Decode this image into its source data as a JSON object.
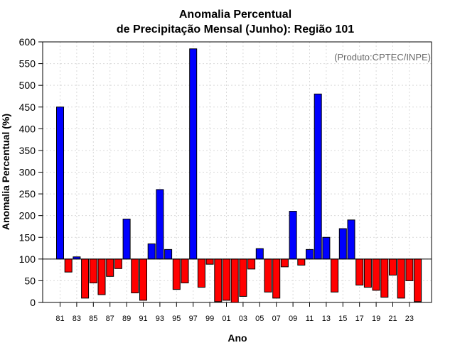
{
  "chart_data": {
    "type": "bar",
    "title_line1": "Anomalia Percentual",
    "title_line2": "de Precipitação Mensal (Junho): Região 101",
    "xlabel": "Ano",
    "ylabel": "Anomalia Percentual (%)",
    "credit": "(Produto:CPTEC/INPE)",
    "ylim": [
      0,
      600
    ],
    "yticks": [
      0,
      50,
      100,
      150,
      200,
      250,
      300,
      350,
      400,
      450,
      500,
      550,
      600
    ],
    "baseline": 100,
    "grid": true,
    "color_above": "#0000ff",
    "color_below": "#ff0000",
    "categories": [
      "81",
      "82",
      "83",
      "84",
      "85",
      "86",
      "87",
      "88",
      "89",
      "90",
      "91",
      "92",
      "93",
      "94",
      "95",
      "96",
      "97",
      "98",
      "99",
      "00",
      "01",
      "02",
      "03",
      "04",
      "05",
      "06",
      "07",
      "08",
      "09",
      "10",
      "11",
      "12",
      "13",
      "14",
      "15",
      "16",
      "17",
      "18",
      "19",
      "20",
      "21",
      "22",
      "23",
      "24"
    ],
    "tick_labels": [
      "81",
      "83",
      "85",
      "87",
      "89",
      "91",
      "93",
      "95",
      "97",
      "99",
      "01",
      "03",
      "05",
      "07",
      "09",
      "11",
      "13",
      "15",
      "17",
      "19",
      "21",
      "23"
    ],
    "values": [
      450,
      70,
      105,
      10,
      45,
      18,
      60,
      78,
      192,
      22,
      5,
      135,
      260,
      122,
      30,
      45,
      584,
      35,
      88,
      2,
      5,
      0,
      14,
      77,
      124,
      24,
      10,
      82,
      210,
      86,
      122,
      480,
      150,
      24,
      170,
      190,
      40,
      35,
      28,
      12,
      63,
      10,
      50,
      2
    ]
  }
}
